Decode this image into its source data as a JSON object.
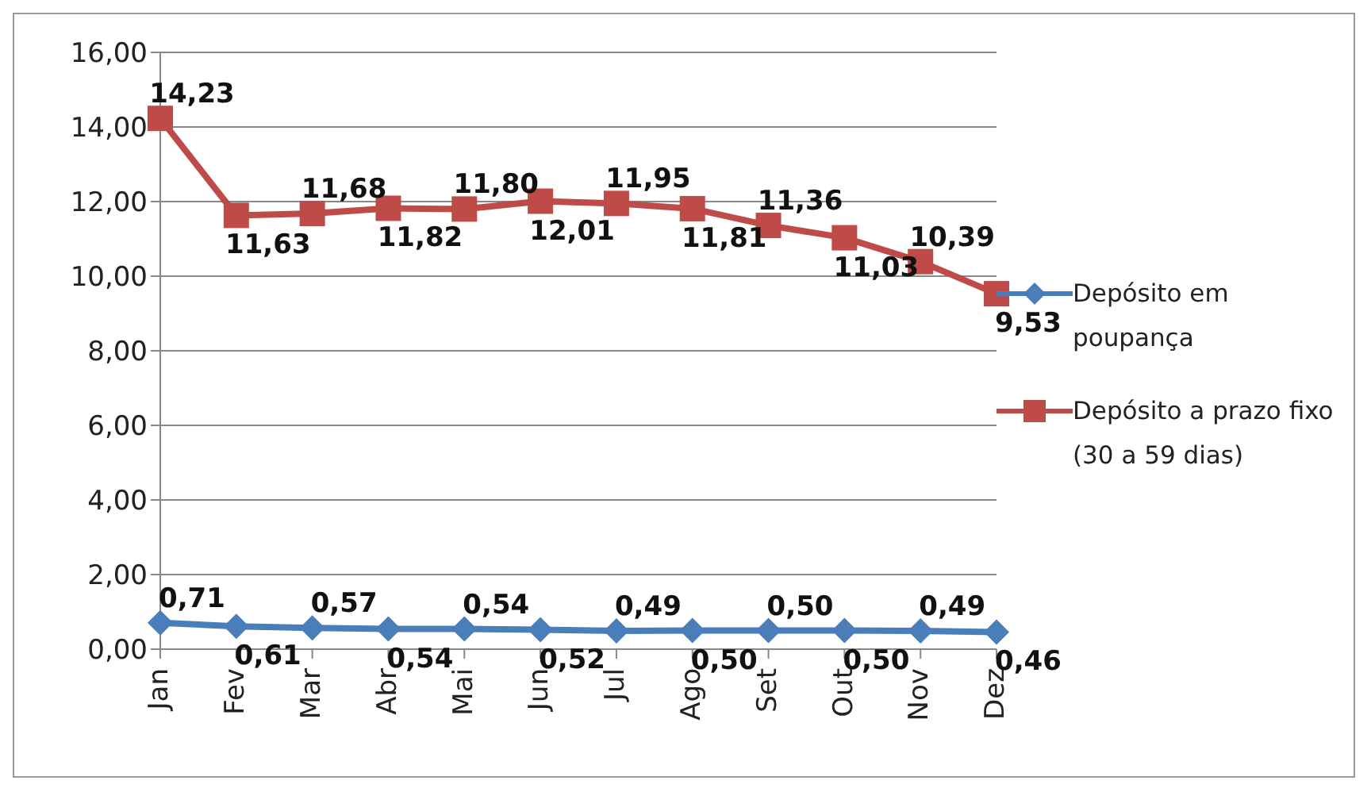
{
  "chart_data": {
    "type": "line",
    "categories": [
      "Jan",
      "Fev",
      "Mar",
      "Abr",
      "Mai",
      "Jun",
      "Jul",
      "Ago",
      "Set",
      "Out",
      "Nov",
      "Dez"
    ],
    "series": [
      {
        "name": "Depósito em poupança",
        "color": "#4a7ebb",
        "marker": "diamond",
        "values": [
          0.71,
          0.61,
          0.57,
          0.54,
          0.54,
          0.52,
          0.49,
          0.5,
          0.5,
          0.5,
          0.49,
          0.46
        ],
        "value_labels": [
          "0,71",
          "0,61",
          "0,57",
          "0,54",
          "0,54",
          "0,52",
          "0,49",
          "0,50",
          "0,50",
          "0,50",
          "0,49",
          "0,46"
        ]
      },
      {
        "name": "Depósito a prazo fixo (30 a 59 dias)",
        "color": "#be4b48",
        "marker": "square",
        "values": [
          14.23,
          11.63,
          11.68,
          11.82,
          11.8,
          12.01,
          11.95,
          11.81,
          11.36,
          11.03,
          10.39,
          9.53
        ],
        "value_labels": [
          "14,23",
          "11,63",
          "11,68",
          "11,82",
          "11,80",
          "12,01",
          "11,95",
          "11,81",
          "11,36",
          "11,03",
          "10,39",
          "9,53"
        ]
      }
    ],
    "ylim": [
      0,
      16
    ],
    "yticks": [
      {
        "value": 0,
        "label": "0,00"
      },
      {
        "value": 2,
        "label": "2,00"
      },
      {
        "value": 4,
        "label": "4,00"
      },
      {
        "value": 6,
        "label": "6,00"
      },
      {
        "value": 8,
        "label": "8,00"
      },
      {
        "value": 10,
        "label": "10,00"
      },
      {
        "value": 12,
        "label": "12,00"
      },
      {
        "value": 14,
        "label": "14,00"
      },
      {
        "value": 16,
        "label": "16,00"
      }
    ],
    "grid": "y",
    "legend": "right",
    "line_style": "solid"
  }
}
